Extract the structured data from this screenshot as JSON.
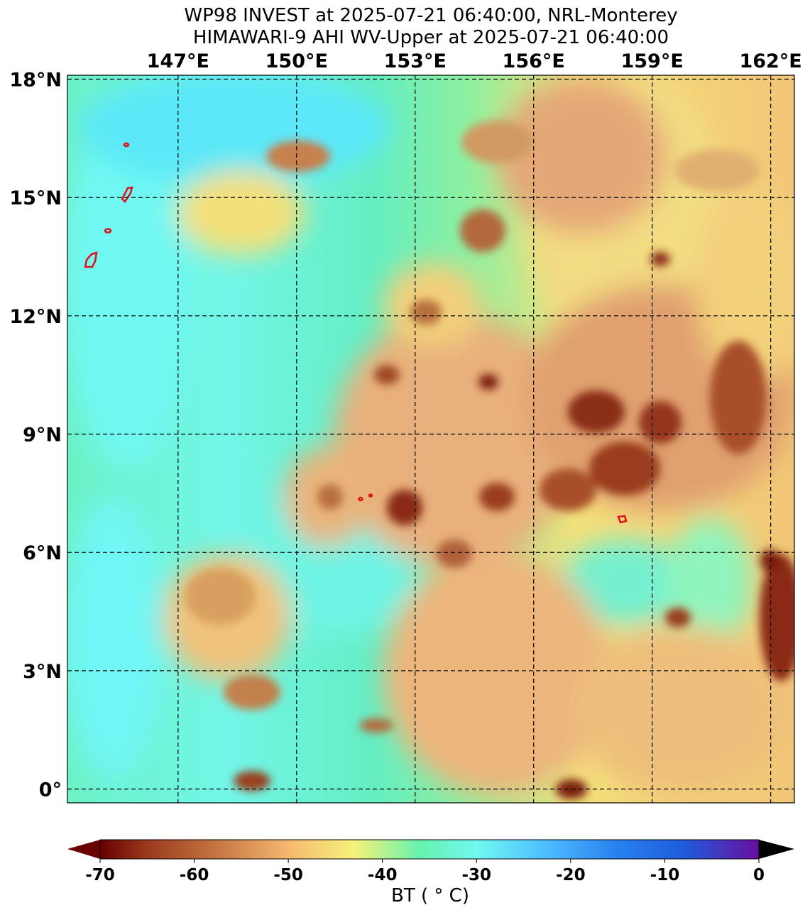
{
  "title_line1": "WP98 INVEST at 2025-07-21 06:40:00, NRL-Monterey",
  "title_line2": "HIMAWARI-9 AHI WV-Upper at 2025-07-21 06:40:00",
  "map": {
    "lon_range": [
      144.2,
      162.6
    ],
    "lat_range": [
      -0.35,
      18.1
    ],
    "lon_ticks": [
      {
        "value": 147,
        "label": "147°E"
      },
      {
        "value": 150,
        "label": "150°E"
      },
      {
        "value": 153,
        "label": "153°E"
      },
      {
        "value": 156,
        "label": "156°E"
      },
      {
        "value": 159,
        "label": "159°E"
      },
      {
        "value": 162,
        "label": "162°E"
      }
    ],
    "lat_ticks": [
      {
        "value": 18,
        "label": "18°N"
      },
      {
        "value": 15,
        "label": "15°N"
      },
      {
        "value": 12,
        "label": "12°N"
      },
      {
        "value": 9,
        "label": "9°N"
      },
      {
        "value": 6,
        "label": "6°N"
      },
      {
        "value": 3,
        "label": "3°N"
      },
      {
        "value": 0,
        "label": "0°"
      }
    ],
    "gridlines": "dashed",
    "coastline_color": "#e0101a"
  },
  "colorbar": {
    "label": "BT ( ° C)",
    "min": -70,
    "max": 0,
    "ticks": [
      {
        "value": -70,
        "label": "-70"
      },
      {
        "value": -60,
        "label": "-60"
      },
      {
        "value": -50,
        "label": "-50"
      },
      {
        "value": -40,
        "label": "-40"
      },
      {
        "value": -30,
        "label": "-30"
      },
      {
        "value": -20,
        "label": "-20"
      },
      {
        "value": -10,
        "label": "-10"
      },
      {
        "value": 0,
        "label": "0"
      }
    ],
    "stops": [
      {
        "value": -74,
        "color": "#650000"
      },
      {
        "value": -65,
        "color": "#9a3a1c"
      },
      {
        "value": -57,
        "color": "#c87a46"
      },
      {
        "value": -50,
        "color": "#f6b870"
      },
      {
        "value": -43,
        "color": "#f7f27a"
      },
      {
        "value": -36,
        "color": "#66f2ae"
      },
      {
        "value": -30,
        "color": "#70f9f0"
      },
      {
        "value": -23,
        "color": "#4fc0ff"
      },
      {
        "value": -15,
        "color": "#2880ee"
      },
      {
        "value": -8,
        "color": "#1e5cdb"
      },
      {
        "value": 0,
        "color": "#6a0ea0"
      }
    ],
    "under_color": "#6a0000",
    "over_color": "#000000"
  }
}
